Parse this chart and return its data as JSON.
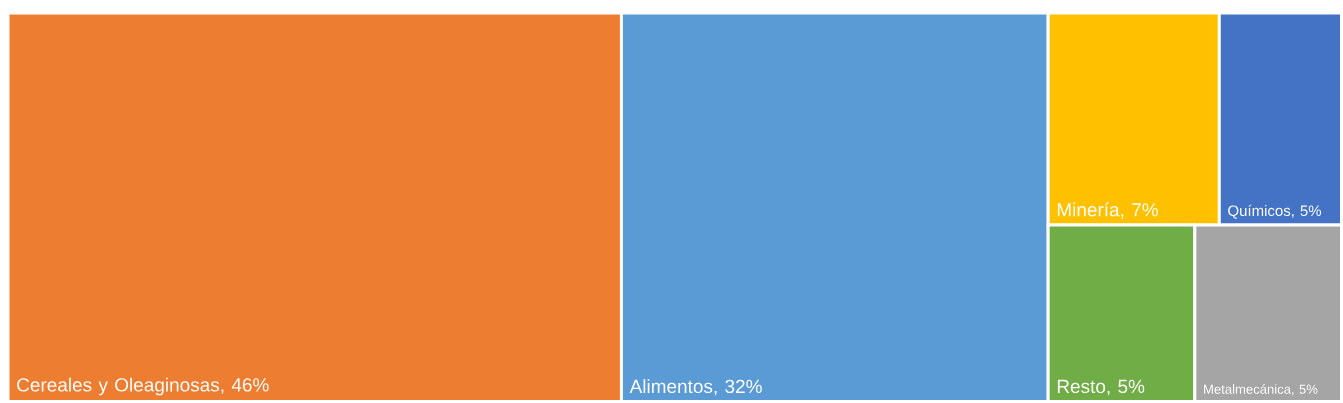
{
  "chart_data": {
    "type": "other",
    "categories": [
      "Cereales y Oleaginosas",
      "Alimentos",
      "Minería",
      "Químicos",
      "Resto",
      "Metalmecánica"
    ],
    "values": [
      46,
      32,
      7,
      5,
      5,
      5
    ],
    "value_labels": [
      ", 46%",
      ", 32%",
      ", 7%",
      ", 5%",
      ", 5%",
      ", 5%"
    ],
    "colors": [
      "#ed7d31",
      "#5b9bd5",
      "#ffc000",
      "#4472c4",
      "#70ad47",
      "#a5a5a5"
    ],
    "data_labels": true
  }
}
